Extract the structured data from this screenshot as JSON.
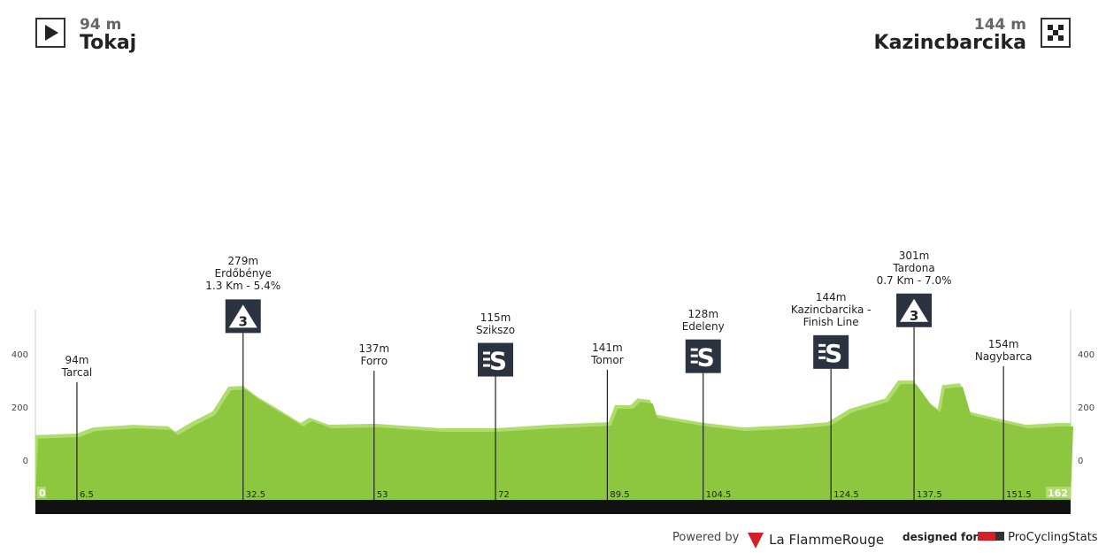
{
  "start": {
    "altitude": "94 m",
    "city": "Tokaj",
    "icon": "play-icon"
  },
  "finish": {
    "altitude": "144 m",
    "city": "Kazincbarcika",
    "icon": "checkered-flag-icon"
  },
  "chart_data": {
    "type": "area",
    "xlim": [
      0,
      162
    ],
    "ylim": [
      -150,
      567
    ],
    "yticks": [
      0,
      200,
      400
    ],
    "xlabels": [
      "0",
      "6.5",
      "32.5",
      "53",
      "72",
      "89.5",
      "104.5",
      "124.5",
      "137.5",
      "151.5",
      "162"
    ],
    "colors": {
      "fill": "#8dc63f",
      "climb": "#b0dc6e",
      "base": "#111111",
      "box": "#2b3340"
    },
    "profile": [
      [
        0,
        94
      ],
      [
        6.5,
        100
      ],
      [
        9,
        123
      ],
      [
        15.2,
        133
      ],
      [
        20.8,
        127
      ],
      [
        21.9,
        107
      ],
      [
        24.2,
        140
      ],
      [
        27.7,
        183
      ],
      [
        30.2,
        277
      ],
      [
        32.5,
        280
      ],
      [
        34.5,
        243
      ],
      [
        38.8,
        180
      ],
      [
        41.5,
        140
      ],
      [
        42.9,
        160
      ],
      [
        45.9,
        133
      ],
      [
        53,
        137
      ],
      [
        63.4,
        120
      ],
      [
        72,
        120
      ],
      [
        80.3,
        133
      ],
      [
        89.7,
        143
      ],
      [
        90.7,
        207
      ],
      [
        93.2,
        207
      ],
      [
        94.2,
        233
      ],
      [
        96.2,
        227
      ],
      [
        96.9,
        173
      ],
      [
        99.7,
        160
      ],
      [
        104.7,
        140
      ],
      [
        110.8,
        123
      ],
      [
        119,
        133
      ],
      [
        124,
        143
      ],
      [
        127.4,
        193
      ],
      [
        133,
        233
      ],
      [
        135,
        300
      ],
      [
        137.4,
        300
      ],
      [
        139.9,
        217
      ],
      [
        141.2,
        193
      ],
      [
        141.9,
        283
      ],
      [
        144.7,
        290
      ],
      [
        146,
        183
      ],
      [
        151.3,
        153
      ],
      [
        155,
        133
      ],
      [
        159.9,
        140
      ],
      [
        162,
        140
      ]
    ],
    "points": [
      {
        "km": 6.5,
        "lines": [
          "94m",
          "Tarcal"
        ],
        "icon": ""
      },
      {
        "km": 32.5,
        "lines": [
          "279m",
          "Erdőbénye",
          "1.3 Km - 5.4%"
        ],
        "icon": "kom-3"
      },
      {
        "km": 53,
        "lines": [
          "137m",
          "Forro"
        ],
        "icon": ""
      },
      {
        "km": 72,
        "lines": [
          "115m",
          "Szikszo"
        ],
        "icon": "sprint"
      },
      {
        "km": 89.5,
        "lines": [
          "141m",
          "Tomor"
        ],
        "icon": ""
      },
      {
        "km": 104.5,
        "lines": [
          "128m",
          "Edeleny"
        ],
        "icon": "sprint"
      },
      {
        "km": 124.5,
        "lines": [
          "144m",
          "Kazincbarcika -",
          "Finish Line"
        ],
        "icon": "sprint"
      },
      {
        "km": 137.5,
        "lines": [
          "301m",
          "Tardona",
          "0.7 Km - 7.0%"
        ],
        "icon": "kom-3"
      },
      {
        "km": 151.5,
        "lines": [
          "154m",
          "Nagybarca"
        ],
        "icon": ""
      }
    ]
  },
  "footer": {
    "powered": "Powered by",
    "brand": "La FlammeRouge",
    "designed": "designed for",
    "pcs": "ProCyclingStats"
  }
}
